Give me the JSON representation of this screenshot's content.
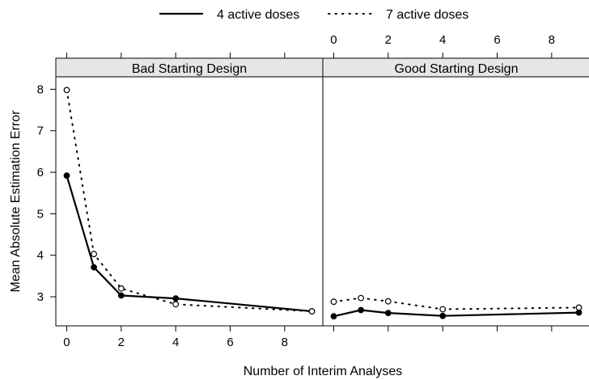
{
  "chart_data": {
    "type": "line",
    "xlabel": "Number of Interim Analyses",
    "ylabel": "Mean Absolute Estimation Error",
    "xlim": [
      -0.4,
      9.4
    ],
    "ylim": [
      2.3,
      8.3
    ],
    "x_ticks": [
      0,
      2,
      4,
      6,
      8
    ],
    "y_ticks": [
      3,
      4,
      5,
      6,
      7,
      8
    ],
    "grid": false,
    "legend": {
      "position": "top",
      "entries": [
        {
          "label": "4 active doses",
          "style": "solid",
          "marker": "filled-circle",
          "color": "#000000"
        },
        {
          "label": "7 active doses",
          "style": "dotted",
          "marker": "open-circle",
          "color": "#000000"
        }
      ]
    },
    "panels": [
      {
        "title": "Bad Starting Design",
        "series": [
          {
            "name": "4 active doses",
            "x": [
              0,
              1,
              2,
              4,
              9
            ],
            "y": [
              5.92,
              3.71,
              3.03,
              2.96,
              2.65
            ]
          },
          {
            "name": "7 active doses",
            "x": [
              0,
              1,
              2,
              4,
              9
            ],
            "y": [
              7.98,
              4.03,
              3.2,
              2.82,
              2.65
            ]
          }
        ]
      },
      {
        "title": "Good Starting Design",
        "series": [
          {
            "name": "4 active doses",
            "x": [
              0,
              1,
              2,
              4,
              9
            ],
            "y": [
              2.53,
              2.68,
              2.61,
              2.54,
              2.62
            ]
          },
          {
            "name": "7 active doses",
            "x": [
              0,
              1,
              2,
              4,
              9
            ],
            "y": [
              2.88,
              2.97,
              2.89,
              2.7,
              2.74
            ]
          }
        ]
      }
    ]
  }
}
